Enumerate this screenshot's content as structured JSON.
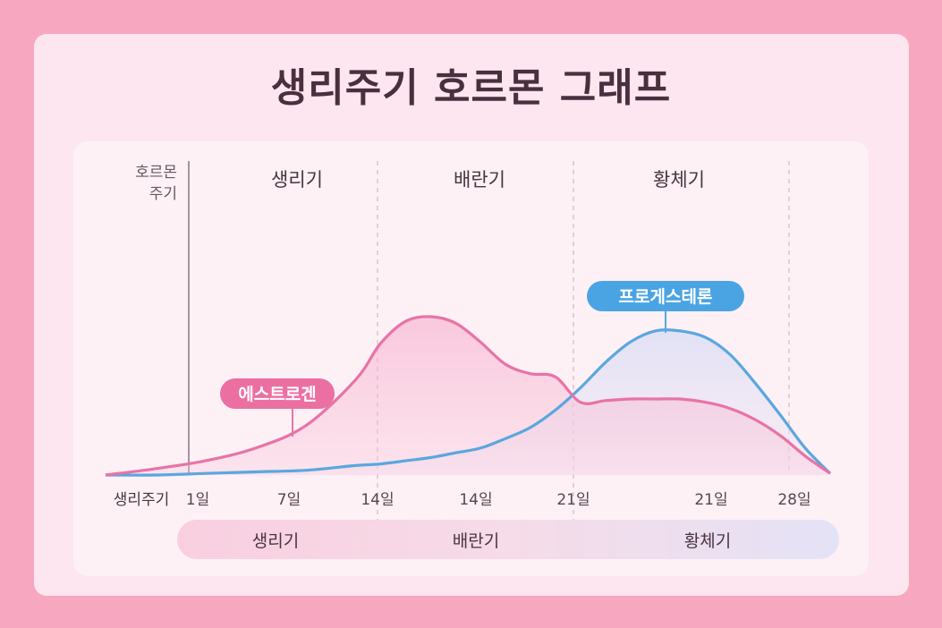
{
  "title": "생리주기 호르몬 그래프",
  "y_axis_label": [
    "호르몬",
    "주기"
  ],
  "x_axis_label": "생리주기",
  "phase_headers": [
    "생리기",
    "배란기",
    "황체기"
  ],
  "phase_bar": [
    "생리기",
    "배란기",
    "황체기"
  ],
  "colors": {
    "background": "#f7a8c0",
    "estrogen": "#e873a6",
    "progesterone": "#5aa7de",
    "title": "#4a2f3f"
  },
  "chart_data": {
    "type": "line",
    "title": "생리주기 호르몬 그래프",
    "xlabel": "생리주기",
    "ylabel": "호르몬 주기",
    "x_tick_labels": [
      "1일",
      "7일",
      "14일",
      "14일",
      "21일",
      "21일",
      "28일"
    ],
    "xlim": [
      0,
      29
    ],
    "ylim": [
      0,
      100
    ],
    "y_ticks_shown": false,
    "grid": "dashed vertical phase dividers",
    "x": [
      0,
      2,
      4,
      6,
      8,
      10,
      11,
      12,
      13,
      14,
      15,
      16,
      17,
      18,
      19,
      20,
      21,
      22,
      23,
      24,
      25,
      26,
      27,
      28,
      29
    ],
    "series": [
      {
        "name": "에스트로겐",
        "color": "#e873a6",
        "values": [
          0,
          4,
          9,
          17,
          31,
          60,
          83,
          97,
          100,
          96,
          84,
          70,
          64,
          62,
          46,
          47,
          48,
          48,
          48,
          46,
          42,
          35,
          25,
          12,
          1
        ]
      },
      {
        "name": "프로게스테론",
        "color": "#5aa7de",
        "values": [
          0,
          0,
          1,
          2,
          3,
          6,
          7,
          9,
          11,
          14,
          17,
          23,
          30,
          41,
          55,
          71,
          84,
          91,
          91,
          87,
          76,
          58,
          38,
          17,
          1
        ]
      }
    ],
    "legend": "inline labels on curves"
  }
}
